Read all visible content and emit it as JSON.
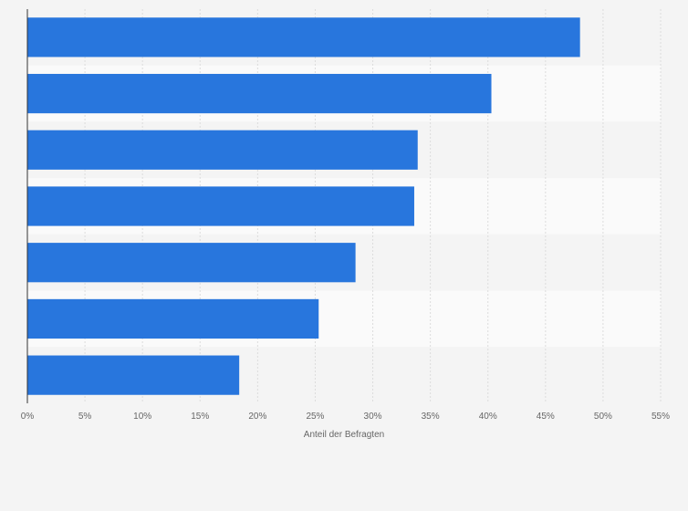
{
  "chart_data": {
    "type": "bar",
    "orientation": "horizontal",
    "categories": [
      "",
      "",
      "",
      "",
      "",
      "",
      ""
    ],
    "values": [
      48,
      40.3,
      33.9,
      33.6,
      28.5,
      25.3,
      18.4
    ],
    "xlabel": "Anteil der Befragten",
    "ylabel": "",
    "xlim": [
      0,
      55
    ],
    "x_ticks": [
      "0%",
      "5%",
      "10%",
      "15%",
      "20%",
      "25%",
      "30%",
      "35%",
      "40%",
      "45%",
      "50%",
      "55%"
    ],
    "grid": true,
    "legend": "none",
    "colors": {
      "bar": "#2876dd",
      "band_light": "#fafafa",
      "band_dark": "#f4f4f4",
      "grid": "#dcdcdc",
      "axis": "#333333"
    }
  }
}
